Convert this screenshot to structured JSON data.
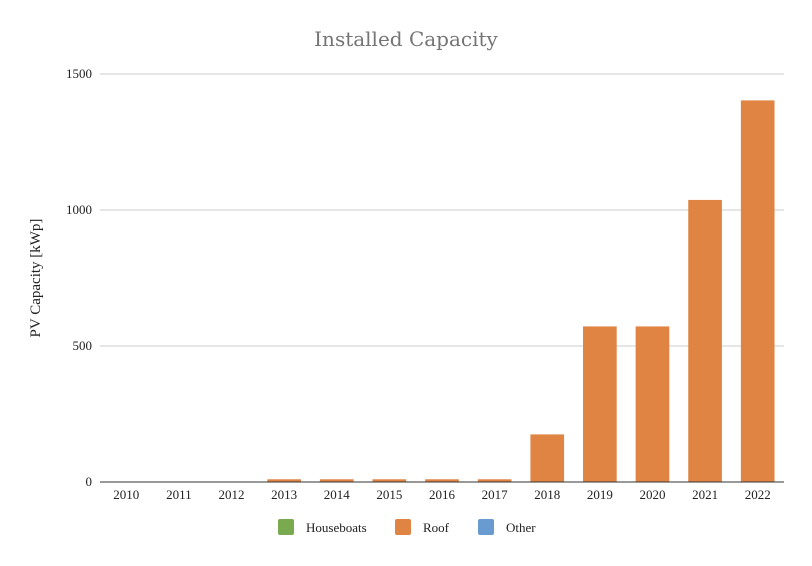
{
  "chart_data": {
    "type": "bar",
    "stacked": true,
    "title": "Installed Capacity",
    "xlabel": "",
    "ylabel": "PV Capacity [kWp]",
    "categories": [
      "2010",
      "2011",
      "2012",
      "2013",
      "2014",
      "2015",
      "2016",
      "2017",
      "2018",
      "2019",
      "2020",
      "2021",
      "2022"
    ],
    "ylim": [
      0,
      1500
    ],
    "yticks": [
      0,
      500,
      1000,
      1500
    ],
    "grid": true,
    "legend_position": "bottom",
    "series": [
      {
        "name": "Houseboats",
        "color": "#7aaa50",
        "values": [
          0,
          0,
          0,
          0,
          0,
          0,
          0,
          0,
          0,
          0,
          0,
          0,
          0
        ]
      },
      {
        "name": "Roof",
        "color": "#e08444",
        "values": [
          0,
          0,
          0,
          10,
          10,
          10,
          10,
          10,
          175,
          572,
          572,
          1037,
          1403
        ]
      },
      {
        "name": "Other",
        "color": "#6a9bd0",
        "values": [
          0,
          0,
          0,
          0,
          0,
          0,
          0,
          0,
          0,
          0,
          0,
          0,
          0
        ]
      }
    ]
  }
}
